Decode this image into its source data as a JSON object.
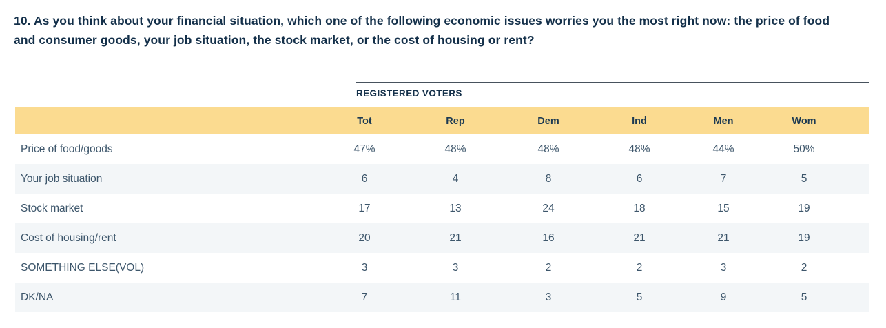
{
  "question": "10. As you think about your financial situation, which one of the following economic issues worries you the most right now: the price of food and consumer goods, your job situation, the stock market, or the cost of housing or rent?",
  "group_header": "REGISTERED VOTERS",
  "colors": {
    "header_band": "#FBDB90",
    "row_alternate": "#F3F6F8",
    "question_text": "#14304A",
    "table_text": "#3D566B",
    "rule": "#47525D"
  },
  "chart_data": {
    "type": "table",
    "title": "10. As you think about your financial situation, which one of the following economic issues worries you the most right now: the price of food and consumer goods, your job situation, the stock market, or the cost of housing or rent?",
    "group_header": "REGISTERED VOTERS",
    "columns": [
      "Tot",
      "Rep",
      "Dem",
      "Ind",
      "Men",
      "Wom"
    ],
    "rows": [
      {
        "label": "Price of food/goods",
        "values": [
          "47%",
          "48%",
          "48%",
          "48%",
          "44%",
          "50%"
        ]
      },
      {
        "label": "Your job situation",
        "values": [
          "6",
          "4",
          "8",
          "6",
          "7",
          "5"
        ]
      },
      {
        "label": "Stock market",
        "values": [
          "17",
          "13",
          "24",
          "18",
          "15",
          "19"
        ]
      },
      {
        "label": "Cost of housing/rent",
        "values": [
          "20",
          "21",
          "16",
          "21",
          "21",
          "19"
        ]
      },
      {
        "label": "SOMETHING ELSE(VOL)",
        "values": [
          "3",
          "3",
          "2",
          "2",
          "3",
          "2"
        ]
      },
      {
        "label": "DK/NA",
        "values": [
          "7",
          "11",
          "3",
          "5",
          "9",
          "5"
        ]
      }
    ],
    "layout": {
      "legend": "none",
      "grid": "off",
      "row_shading": "alternating"
    }
  }
}
